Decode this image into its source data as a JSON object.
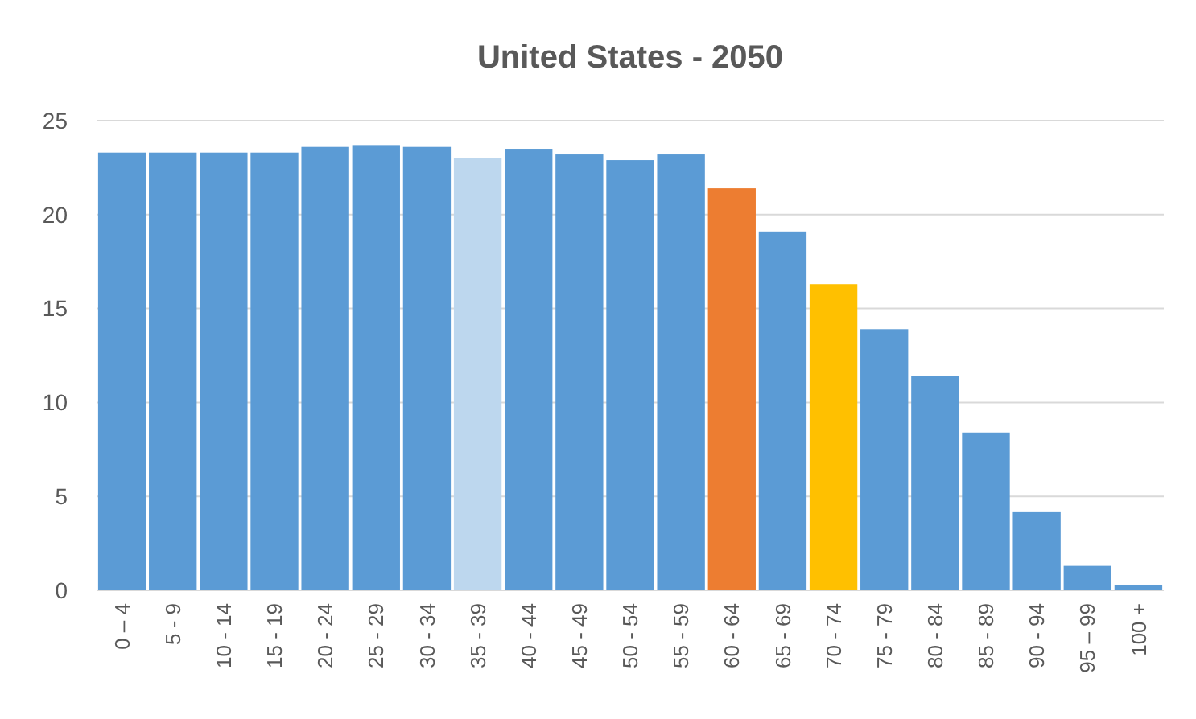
{
  "chart_data": {
    "type": "bar",
    "title": "United States - 2050",
    "categories": [
      "0 – 4",
      "5 - 9",
      "10 - 14",
      "15 - 19",
      "20 - 24",
      "25 - 29",
      "30 - 34",
      "35 - 39",
      "40 - 44",
      "45 - 49",
      "50 - 54",
      "55 - 59",
      "60 - 64",
      "65 - 69",
      "70 - 74",
      "75 - 79",
      "80 - 84",
      "85 - 89",
      "90 - 94",
      "95 – 99",
      "100 +"
    ],
    "values": [
      23.3,
      23.3,
      23.3,
      23.3,
      23.6,
      23.7,
      23.6,
      23.0,
      23.5,
      23.2,
      22.9,
      23.2,
      21.4,
      19.1,
      16.3,
      13.9,
      11.4,
      8.4,
      4.2,
      1.3,
      0.3
    ],
    "colors": [
      "#5b9bd5",
      "#5b9bd5",
      "#5b9bd5",
      "#5b9bd5",
      "#5b9bd5",
      "#5b9bd5",
      "#5b9bd5",
      "#bdd7ee",
      "#5b9bd5",
      "#5b9bd5",
      "#5b9bd5",
      "#5b9bd5",
      "#ed7d31",
      "#5b9bd5",
      "#ffc000",
      "#5b9bd5",
      "#5b9bd5",
      "#5b9bd5",
      "#5b9bd5",
      "#5b9bd5",
      "#5b9bd5"
    ],
    "ylim": [
      0,
      25
    ],
    "yticks": [
      0,
      5,
      10,
      15,
      20,
      25
    ],
    "grid": "y"
  }
}
